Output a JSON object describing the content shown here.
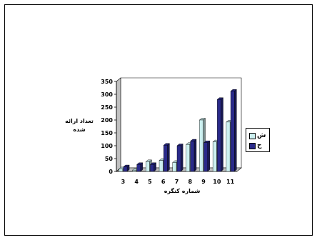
{
  "chart_data": {
    "type": "bar",
    "categories": [
      "3",
      "4",
      "5",
      "6",
      "7",
      "8",
      "9",
      "10",
      "11"
    ],
    "series": [
      {
        "name": "ش",
        "values": [
          10,
          5,
          38,
          43,
          35,
          105,
          200,
          115,
          192
        ],
        "color": "#ccf0f0"
      },
      {
        "name": "ح",
        "values": [
          18,
          27,
          27,
          102,
          100,
          118,
          112,
          280,
          312
        ],
        "color": "#2a2a8a"
      }
    ],
    "ylim": [
      0,
      350
    ],
    "yticks": [
      "0",
      "50",
      "100",
      "150",
      "200",
      "250",
      "300",
      "350"
    ],
    "ylabel": "تعداد ارائه شده",
    "xlabel": "شماره کنگره",
    "title": "",
    "grid": false,
    "legend_position": "right"
  }
}
